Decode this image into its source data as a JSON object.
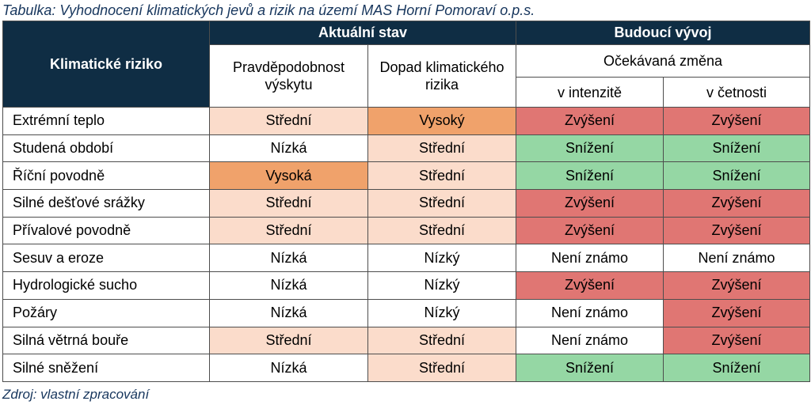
{
  "caption": "Tabulka: Vyhodnocení klimatických jevů a rizik na území MAS Horní Pomoraví o.p.s.",
  "source": "Zdroj: vlastní zpracování",
  "header": {
    "risk": "Klimatické riziko",
    "current_state": "Aktuální stav",
    "future": "Budoucí vývoj",
    "probability": "Pravděpodobnost výskytu",
    "impact": "Dopad klimatického rizika",
    "expected_change": "Očekávaná změna",
    "intensity": "v intenzitě",
    "frequency": "v četnosti"
  },
  "colors": {
    "header_dark": "#0f2d44",
    "high": "#f0a26b",
    "medium": "#fbdccb",
    "low": "#ffffff",
    "increase": "#e07673",
    "decrease": "#95d7a4",
    "unknown": "#ffffff"
  },
  "rows": [
    {
      "risk": "Extrémní teplo",
      "probability": "Střední",
      "impact": "Vysoký",
      "intensity": "Zvýšení",
      "frequency": "Zvýšení"
    },
    {
      "risk": "Studená období",
      "probability": "Nízká",
      "impact": "Střední",
      "intensity": "Snížení",
      "frequency": "Snížení"
    },
    {
      "risk": "Říční povodně",
      "probability": "Vysoká",
      "impact": "Střední",
      "intensity": "Snížení",
      "frequency": "Snížení"
    },
    {
      "risk": "Silné dešťové srážky",
      "probability": "Střední",
      "impact": "Střední",
      "intensity": "Zvýšení",
      "frequency": "Zvýšení"
    },
    {
      "risk": "Přívalové povodně",
      "probability": "Střední",
      "impact": "Střední",
      "intensity": "Zvýšení",
      "frequency": "Zvýšení"
    },
    {
      "risk": "Sesuv a eroze",
      "probability": "Nízká",
      "impact": "Nízký",
      "intensity": "Není známo",
      "frequency": "Není známo"
    },
    {
      "risk": "Hydrologické sucho",
      "probability": "Nízká",
      "impact": "Nízký",
      "intensity": "Zvýšení",
      "frequency": "Zvýšení"
    },
    {
      "risk": "Požáry",
      "probability": "Nízká",
      "impact": "Nízký",
      "intensity": "Není známo",
      "frequency": "Zvýšení"
    },
    {
      "risk": "Silná větrná bouře",
      "probability": "Střední",
      "impact": "Střední",
      "intensity": "Není známo",
      "frequency": "Zvýšení"
    },
    {
      "risk": "Silné sněžení",
      "probability": "Nízká",
      "impact": "Střední",
      "intensity": "Snížení",
      "frequency": "Snížení"
    }
  ]
}
